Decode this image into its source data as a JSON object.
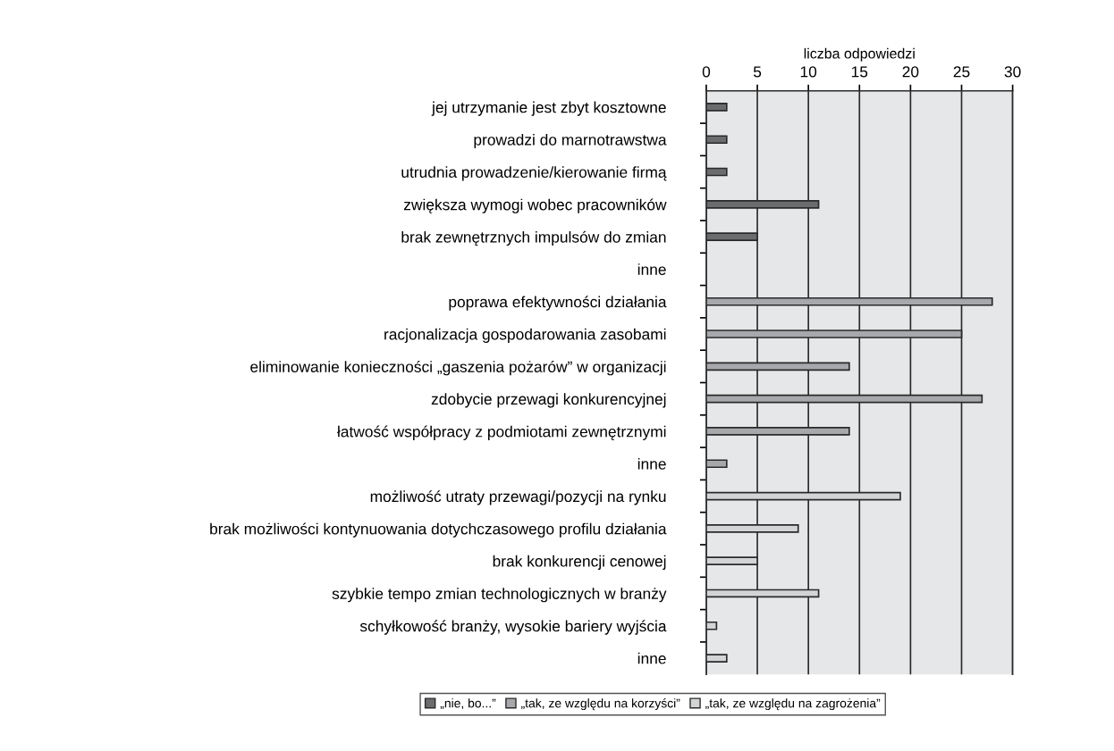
{
  "chart_data": {
    "type": "bar",
    "orientation": "horizontal",
    "xlabel": "liczba odpowiedzi",
    "categories": [
      "jej utrzymanie jest zbyt kosztowne",
      "prowadzi do marnotrawstwa",
      "utrudnia prowadzenie/kierowanie firmą",
      "zwiększa wymogi wobec pracowników",
      "brak zewnętrznych impulsów do zmian",
      "inne",
      "poprawa efektywności działania",
      "racjonalizacja gospodarowania zasobami",
      "eliminowanie konieczności „gaszenia pożarów” w organizacji",
      "zdobycie przewagi konkurencyjnej",
      "łatwość współpracy z podmiotami zewnętrznymi",
      "inne",
      "możliwość utraty przewagi/pozycji na rynku",
      "brak możliwości kontynuowania dotychczasowego profilu działania",
      "brak konkurencji cenowej",
      "szybkie tempo zmian technologicznych w branży",
      "schyłkowość branży, wysokie bariery wyjścia",
      "inne"
    ],
    "series": [
      {
        "name": "„nie, bo...”",
        "color": "#6b6c6e",
        "values": [
          2,
          2,
          2,
          11,
          5,
          null,
          null,
          null,
          null,
          null,
          null,
          null,
          null,
          null,
          null,
          null,
          null,
          null
        ]
      },
      {
        "name": "„tak, ze względu na korzyści”",
        "color": "#a7a8ab",
        "values": [
          null,
          null,
          null,
          null,
          null,
          null,
          28,
          25,
          14,
          27,
          14,
          2,
          null,
          null,
          null,
          null,
          null,
          null
        ]
      },
      {
        "name": "„tak, ze względu na zagrożenia”",
        "color": "#d3d4d6",
        "values": [
          null,
          null,
          null,
          null,
          null,
          null,
          null,
          null,
          null,
          null,
          null,
          null,
          19,
          9,
          5,
          11,
          1,
          2
        ]
      }
    ],
    "xlim": [
      0,
      30
    ],
    "xticks": [
      0,
      5,
      10,
      15,
      20,
      25,
      30
    ],
    "grid": "x",
    "legend": "bottom"
  }
}
